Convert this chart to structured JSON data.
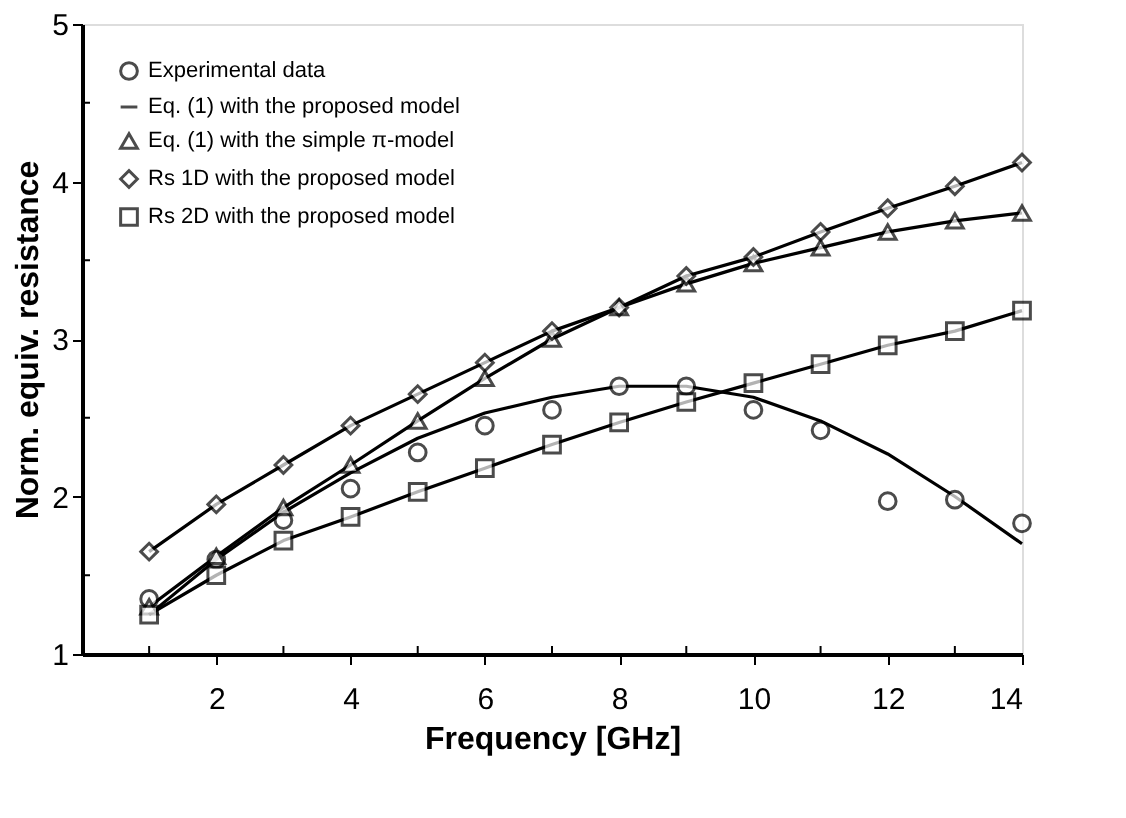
{
  "chart_data": {
    "type": "line",
    "xlabel": "Frequency [GHz]",
    "ylabel": "Norm. equiv. resistance",
    "x": [
      1,
      2,
      3,
      4,
      5,
      6,
      7,
      8,
      9,
      10,
      11,
      12,
      13,
      14
    ],
    "xlim": [
      0,
      14
    ],
    "ylim": [
      1,
      5
    ],
    "xticks": [
      {
        "value": 1,
        "label": null
      },
      2,
      {
        "value": 3,
        "label": null
      },
      4,
      {
        "value": 5,
        "label": null
      },
      6,
      {
        "value": 7,
        "label": null
      },
      8,
      {
        "value": 9,
        "label": null
      },
      10,
      {
        "value": 11,
        "label": null
      },
      12,
      {
        "value": 13,
        "label": null
      },
      14
    ],
    "yticks": [
      1,
      {
        "value": 1.5,
        "label": null
      },
      2,
      {
        "value": 2.5,
        "label": null
      },
      3,
      {
        "value": 3.5,
        "label": null
      },
      4,
      {
        "value": 4.5,
        "label": null
      },
      5
    ],
    "grid": false,
    "legend": "top left",
    "series": [
      {
        "name": "Experimental data",
        "type": "scatter",
        "marker": "circle",
        "color": "#000000",
        "values": [
          1.35,
          1.6,
          1.85,
          2.05,
          2.28,
          2.45,
          2.55,
          2.7,
          2.7,
          2.55,
          2.42,
          1.97,
          1.98,
          1.83
        ]
      },
      {
        "name": "Eq. (1) with the proposed model",
        "type": "line",
        "marker": "none",
        "color": "#000000",
        "values": [
          1.25,
          1.6,
          1.9,
          2.15,
          2.37,
          2.53,
          2.63,
          2.7,
          2.7,
          2.63,
          2.48,
          2.27,
          2.0,
          1.7
        ]
      },
      {
        "name": "Eq. (1) with the simple π-model",
        "type": "line",
        "marker": "triangle",
        "color": "#000000",
        "values": [
          1.3,
          1.62,
          1.93,
          2.2,
          2.48,
          2.75,
          3.0,
          3.2,
          3.35,
          3.48,
          3.58,
          3.68,
          3.75,
          3.8
        ]
      },
      {
        "name": "Rs 1D with the proposed model",
        "type": "line",
        "marker": "diamond",
        "color": "#000000",
        "values": [
          1.65,
          1.95,
          2.2,
          2.45,
          2.65,
          2.85,
          3.05,
          3.2,
          3.4,
          3.52,
          3.68,
          3.83,
          3.97,
          4.12
        ]
      },
      {
        "name": "Rs 2D with the proposed model",
        "type": "line",
        "marker": "square",
        "color": "#000000",
        "values": [
          1.25,
          1.5,
          1.72,
          1.87,
          2.03,
          2.18,
          2.33,
          2.47,
          2.6,
          2.72,
          2.84,
          2.96,
          3.05,
          3.18
        ]
      }
    ]
  }
}
